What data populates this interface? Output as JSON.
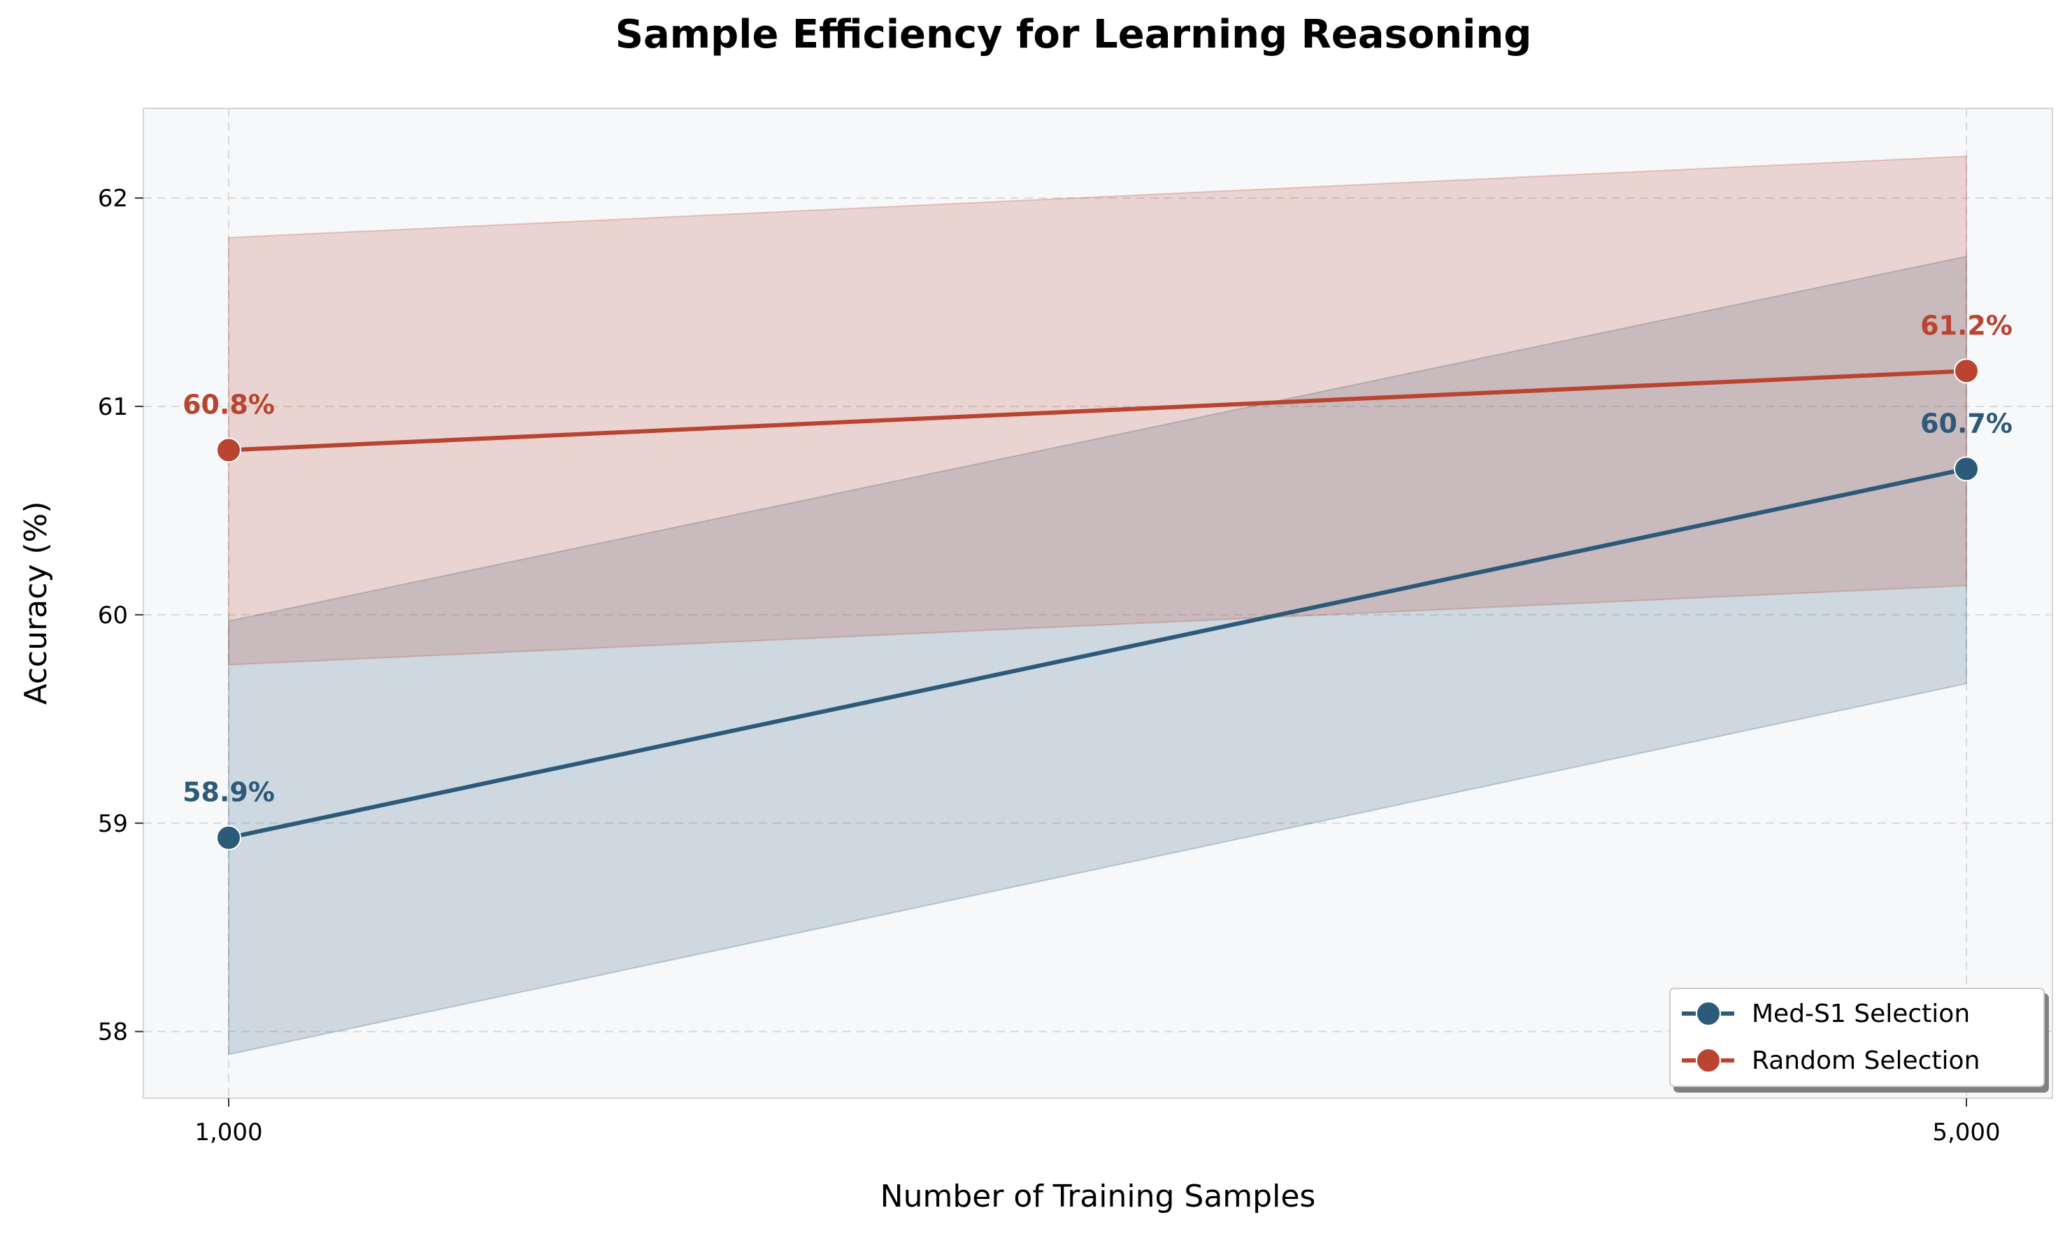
{
  "chart_data": {
    "type": "line",
    "title": "Sample Efficiency for Learning Reasoning",
    "xlabel": "Number of Training Samples",
    "ylabel": "Accuracy (%)",
    "x": [
      1000,
      5000
    ],
    "x_tick_labels": [
      "1,000",
      "5,000"
    ],
    "y_ticks": [
      58,
      59,
      60,
      61,
      62
    ],
    "ylim": [
      57.68,
      62.43
    ],
    "grid": true,
    "legend_position": "lower-right",
    "series": [
      {
        "name": "Med-S1 Selection",
        "color": "#2c5a78",
        "values": [
          58.93,
          60.7
        ],
        "lower": [
          57.89,
          59.67
        ],
        "upper": [
          59.97,
          61.72
        ],
        "data_labels": [
          "58.9%",
          "60.7%"
        ]
      },
      {
        "name": "Random Selection",
        "color": "#b94431",
        "values": [
          60.79,
          61.17
        ],
        "lower": [
          59.76,
          60.14
        ],
        "upper": [
          61.81,
          62.2
        ],
        "data_labels": [
          "60.8%",
          "61.2%"
        ]
      }
    ]
  }
}
